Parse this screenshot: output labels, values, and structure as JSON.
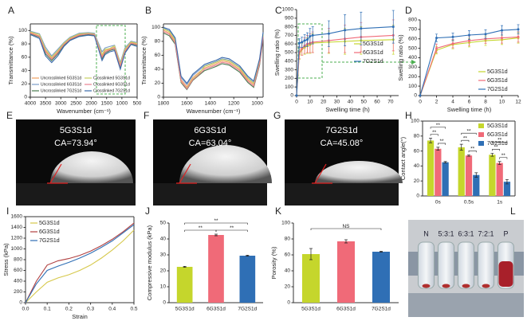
{
  "chart_data": [
    {
      "type": "line",
      "panel_label": "A",
      "xlabel": "Wavenumber (cm⁻¹)",
      "ylabel": "Transmittance (%)",
      "xlim": [
        4000,
        500
      ],
      "xticks": [
        4000,
        3500,
        3000,
        2500,
        2000,
        1500,
        1000,
        500
      ],
      "ylim": [
        0,
        110
      ],
      "yticks": [
        0,
        20,
        40,
        60,
        80,
        100
      ],
      "legend": "lower-center",
      "x": [
        4000,
        3700,
        3500,
        3300,
        3100,
        2900,
        2700,
        2400,
        2100,
        1900,
        1650,
        1550,
        1400,
        1240,
        1050,
        900,
        700,
        500
      ],
      "series": [
        {
          "name": "Uncrosslinked 5G3S1d",
          "color": "#f0a060",
          "values": [
            97,
            92,
            70,
            58,
            68,
            80,
            88,
            94,
            96,
            95,
            62,
            70,
            72,
            75,
            48,
            70,
            82,
            80
          ]
        },
        {
          "name": "Uncrosslinked 6G3S1d",
          "color": "#7a9cc8",
          "values": [
            99,
            95,
            75,
            62,
            72,
            82,
            90,
            96,
            97,
            96,
            68,
            74,
            76,
            78,
            52,
            74,
            84,
            82
          ]
        },
        {
          "name": "Uncrosslinked 7G2S1d",
          "color": "#4a7a50",
          "values": [
            95,
            90,
            65,
            55,
            65,
            78,
            86,
            92,
            94,
            93,
            58,
            66,
            70,
            72,
            45,
            68,
            80,
            78
          ]
        },
        {
          "name": "Crosslinked 5G3S1d",
          "color": "#c8d060",
          "values": [
            98,
            94,
            72,
            60,
            70,
            81,
            89,
            95,
            96,
            95,
            64,
            72,
            73,
            77,
            50,
            72,
            83,
            81
          ]
        },
        {
          "name": "Crosslinked 6G3S1d",
          "color": "#e88090",
          "values": [
            96,
            91,
            68,
            57,
            67,
            79,
            87,
            93,
            95,
            94,
            60,
            68,
            71,
            74,
            47,
            69,
            81,
            79
          ]
        },
        {
          "name": "Crosslinked 7G2S1d",
          "color": "#3a6aaa",
          "values": [
            94,
            88,
            62,
            52,
            62,
            76,
            85,
            91,
            93,
            92,
            55,
            64,
            68,
            70,
            42,
            66,
            79,
            76
          ]
        }
      ]
    },
    {
      "type": "line",
      "panel_label": "B",
      "xlabel": "Wavenumber (cm⁻¹)",
      "ylabel": "Transmittance (%)",
      "xlim": [
        1800,
        950
      ],
      "xticks": [
        1800,
        1600,
        1400,
        1200,
        1000
      ],
      "ylim": [
        0,
        105
      ],
      "yticks": [
        0,
        20,
        40,
        60,
        80,
        100
      ],
      "x": [
        1800,
        1750,
        1700,
        1650,
        1600,
        1550,
        1500,
        1450,
        1400,
        1350,
        1300,
        1240,
        1150,
        1080,
        1030,
        980,
        950
      ],
      "series": [
        {
          "color": "#f0a060",
          "values": [
            96,
            92,
            80,
            25,
            15,
            28,
            35,
            42,
            45,
            48,
            52,
            50,
            40,
            25,
            18,
            50,
            88
          ]
        },
        {
          "color": "#7a9cc8",
          "values": [
            99,
            95,
            83,
            28,
            18,
            31,
            38,
            45,
            48,
            51,
            55,
            53,
            43,
            28,
            21,
            53,
            91
          ]
        },
        {
          "color": "#4a7a50",
          "values": [
            92,
            88,
            76,
            21,
            11,
            24,
            31,
            38,
            41,
            44,
            48,
            46,
            36,
            21,
            14,
            46,
            84
          ]
        },
        {
          "color": "#c8d060",
          "values": [
            98,
            94,
            82,
            22,
            13,
            26,
            33,
            44,
            47,
            50,
            54,
            52,
            42,
            27,
            20,
            52,
            90
          ]
        },
        {
          "color": "#e88090",
          "values": [
            94,
            90,
            78,
            23,
            12,
            25,
            32,
            40,
            43,
            46,
            50,
            48,
            38,
            23,
            16,
            48,
            86
          ]
        },
        {
          "color": "#3a6aaa",
          "values": [
            100,
            97,
            85,
            30,
            20,
            33,
            40,
            47,
            50,
            53,
            57,
            55,
            45,
            30,
            23,
            55,
            93
          ]
        }
      ]
    },
    {
      "type": "line",
      "panel_label": "C",
      "xlabel": "Swelling time (h)",
      "ylabel": "Swelling ratio (%)",
      "xlim": [
        0,
        76
      ],
      "xticks": [
        0,
        10,
        20,
        30,
        40,
        50,
        60,
        70
      ],
      "ylim": [
        0,
        1000
      ],
      "yticks": [
        0,
        100,
        200,
        300,
        400,
        500,
        600,
        700,
        800,
        900,
        1000
      ],
      "legend": "right",
      "markers": true,
      "x": [
        0,
        2,
        4,
        6,
        8,
        10,
        12,
        24,
        36,
        48,
        72
      ],
      "series": [
        {
          "name": "5G3S1d",
          "color": "#c5d62c",
          "values": [
            0,
            480,
            540,
            560,
            580,
            590,
            610,
            620,
            630,
            640,
            650
          ],
          "errors": [
            0,
            60,
            70,
            80,
            90,
            100,
            110,
            130,
            150,
            160,
            170
          ]
        },
        {
          "name": "6G3S1d",
          "color": "#f06a78",
          "values": [
            0,
            500,
            550,
            580,
            600,
            610,
            620,
            640,
            660,
            680,
            700
          ],
          "errors": [
            0,
            70,
            80,
            90,
            100,
            110,
            120,
            140,
            160,
            170,
            180
          ]
        },
        {
          "name": "7G2S1d",
          "color": "#2f6fb5",
          "values": [
            0,
            610,
            620,
            640,
            650,
            690,
            700,
            720,
            760,
            780,
            800
          ],
          "errors": [
            0,
            50,
            60,
            70,
            80,
            90,
            100,
            150,
            180,
            190,
            190
          ]
        }
      ]
    },
    {
      "type": "line",
      "panel_label": "D",
      "xlabel": "Swelling time (h)",
      "ylabel": "Swelling ratio (%)",
      "xlim": [
        0,
        12
      ],
      "xticks": [
        0,
        2,
        4,
        6,
        8,
        10,
        12
      ],
      "ylim": [
        0,
        800
      ],
      "yticks": [
        0,
        100,
        200,
        300,
        400,
        500,
        600,
        700,
        800
      ],
      "legend": "lower-right",
      "markers": true,
      "x": [
        0,
        2,
        4,
        6,
        8,
        10,
        12
      ],
      "series": [
        {
          "name": "5G3S1d",
          "color": "#c5d62c",
          "values": [
            0,
            480,
            540,
            560,
            580,
            590,
            610
          ],
          "errors": [
            0,
            40,
            45,
            45,
            50,
            50,
            55
          ]
        },
        {
          "name": "6G3S1d",
          "color": "#f06a78",
          "values": [
            0,
            500,
            550,
            580,
            600,
            610,
            620
          ],
          "errors": [
            0,
            45,
            45,
            50,
            50,
            55,
            55
          ]
        },
        {
          "name": "7G2S1d",
          "color": "#2f6fb5",
          "values": [
            0,
            610,
            620,
            640,
            650,
            690,
            700
          ],
          "errors": [
            0,
            40,
            40,
            45,
            45,
            50,
            50
          ]
        }
      ]
    },
    {
      "type": "bar",
      "panel_label": "H",
      "ylabel": "Contact angle(°)",
      "categories": [
        "0s",
        "0.5s",
        "1s"
      ],
      "ylim": [
        0,
        100
      ],
      "yticks": [
        0,
        20,
        40,
        60,
        80,
        100
      ],
      "legend": "upper-right",
      "series": [
        {
          "name": "5G3S1d",
          "color": "#c5d62c",
          "values": [
            74,
            65,
            55
          ],
          "errors": [
            3,
            4,
            2
          ]
        },
        {
          "name": "6G3S1d",
          "color": "#f06a78",
          "values": [
            63,
            54,
            44
          ],
          "errors": [
            2,
            1,
            2
          ]
        },
        {
          "name": "7G2S1d",
          "color": "#2f6fb5",
          "values": [
            45,
            28,
            19
          ],
          "errors": [
            1,
            3,
            3
          ]
        }
      ],
      "significance": [
        {
          "label": "**",
          "group": 0,
          "between": [
            0,
            1
          ]
        },
        {
          "label": "**",
          "group": 0,
          "between": [
            1,
            2
          ]
        },
        {
          "label": "**",
          "group": 0,
          "between": [
            0,
            2
          ]
        },
        {
          "label": "**",
          "group": 1,
          "between": [
            0,
            1
          ]
        },
        {
          "label": "**",
          "group": 1,
          "between": [
            1,
            2
          ]
        },
        {
          "label": "**",
          "group": 1,
          "between": [
            0,
            2
          ]
        },
        {
          "label": "**",
          "group": 2,
          "between": [
            0,
            1
          ]
        },
        {
          "label": "**",
          "group": 2,
          "between": [
            1,
            2
          ]
        },
        {
          "label": "**",
          "group": 2,
          "between": [
            0,
            2
          ]
        }
      ]
    },
    {
      "type": "line",
      "panel_label": "I",
      "xlabel": "Strain",
      "ylabel": "Stress (kPa)",
      "xlim": [
        0,
        0.5
      ],
      "xticks": [
        {
          "value": 0,
          "label": "0.0"
        },
        0.1,
        0.2,
        0.3,
        0.4,
        0.5
      ],
      "ylim": [
        0,
        1600
      ],
      "yticks": [
        0,
        200,
        400,
        600,
        800,
        1000,
        1200,
        1400,
        1600
      ],
      "legend": "upper-left",
      "x": [
        0,
        0.05,
        0.1,
        0.15,
        0.2,
        0.25,
        0.3,
        0.35,
        0.4,
        0.45,
        0.5
      ],
      "series": [
        {
          "name": "5G3S1d",
          "color": "#d6c84a",
          "values": [
            0,
            200,
            380,
            460,
            520,
            600,
            700,
            830,
            980,
            1150,
            1350
          ]
        },
        {
          "name": "6G3S1d",
          "color": "#b04040",
          "values": [
            0,
            400,
            700,
            780,
            820,
            880,
            960,
            1060,
            1180,
            1320,
            1480
          ]
        },
        {
          "name": "7G2S1d",
          "color": "#2f6fb5",
          "values": [
            0,
            350,
            600,
            680,
            750,
            830,
            920,
            1030,
            1150,
            1300,
            1450
          ]
        }
      ]
    },
    {
      "type": "bar",
      "panel_label": "J",
      "ylabel": "Compressive modulus (kPa)",
      "categories": [
        "5G3S1d",
        "6G3S1d",
        "7G2S1d"
      ],
      "values": [
        22.5,
        42.5,
        29.5
      ],
      "errors": [
        0.3,
        0.5,
        0.3
      ],
      "colors": [
        "#c5d62c",
        "#f06a78",
        "#2f6fb5"
      ],
      "ylim": [
        0,
        50
      ],
      "yticks": [
        0,
        10,
        20,
        30,
        40,
        50
      ],
      "significance": [
        {
          "label": "**",
          "between": [
            0,
            1
          ]
        },
        {
          "label": "**",
          "between": [
            1,
            2
          ]
        },
        {
          "label": "**",
          "between": [
            0,
            2
          ]
        }
      ]
    },
    {
      "type": "bar",
      "panel_label": "K",
      "ylabel": "Porosity (%)",
      "categories": [
        "5G3S1d",
        "6G3S1d",
        "7G2S1d"
      ],
      "values": [
        61,
        77,
        64
      ],
      "errors": [
        7,
        2,
        0.5
      ],
      "colors": [
        "#c5d62c",
        "#f06a78",
        "#2f6fb5"
      ],
      "ylim": [
        0,
        100
      ],
      "yticks": [
        0,
        20,
        40,
        60,
        80,
        100
      ],
      "significance": [
        {
          "label": "NS",
          "between": [
            0,
            2
          ]
        }
      ]
    }
  ],
  "photos": [
    {
      "panel_label": "E",
      "sample": "5G3S1d",
      "contact_angle": "CA=73.94°"
    },
    {
      "panel_label": "F",
      "sample": "6G3S1d",
      "contact_angle": "CA=63.04°"
    },
    {
      "panel_label": "G",
      "sample": "7G2S1d",
      "contact_angle": "CA=45.08°"
    },
    {
      "panel_label": "L",
      "labels": [
        "N",
        "5:3:1",
        "6:3:1",
        "7:2:1",
        "P"
      ]
    }
  ]
}
